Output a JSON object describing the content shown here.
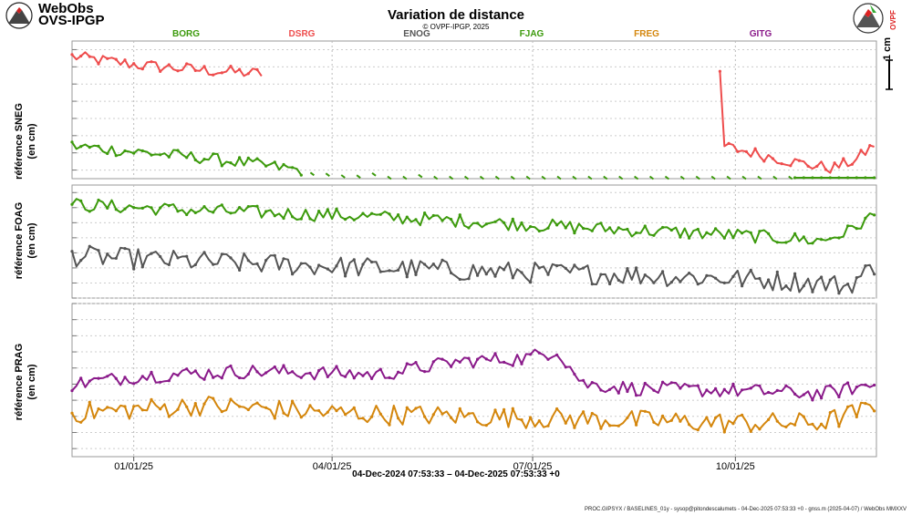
{
  "header": {
    "brand_line1": "WebObs",
    "brand_line2": "OVS-IPGP",
    "title": "Variation de distance",
    "copyright": "© OVPF-IPGP, 2025",
    "logo_text": "OVPF"
  },
  "scale": {
    "label": "1 cm"
  },
  "axis": {
    "date_range": "04-Dec-2024 07:53:33 – 04-Dec-2025 07:53:33 +0",
    "xticks": [
      "01/01/25",
      "04/01/25",
      "07/01/25",
      "10/01/25"
    ]
  },
  "footer": {
    "text": "PROC.GIPSYX / BASELINES_01y - sysop@pitondescalumets - 04-Dec-2025 07:53:33 +0 - gnss.m (2025-04-07) / WebObs MMXXV"
  },
  "colors": {
    "BORG": "#3c9a0c",
    "DSRG": "#ee4c4c",
    "ENOG": "#555555",
    "FJAG": "#3c9a0c",
    "FREG": "#d4860c",
    "GITG": "#8a1a8a"
  },
  "chart_data": {
    "type": "line",
    "title": "Variation de distance",
    "x_unit": "days since 04-Dec-2024",
    "x_range": [
      0,
      365
    ],
    "xticks": [
      {
        "label": "01/01/25",
        "day": 28
      },
      {
        "label": "04/01/25",
        "day": 118
      },
      {
        "label": "07/01/25",
        "day": 209
      },
      {
        "label": "10/01/25",
        "day": 301
      }
    ],
    "legend": [
      "BORG",
      "DSRG",
      "ENOG",
      "FJAG",
      "FREG",
      "GITG"
    ],
    "panels": [
      {
        "ylabel": "référence SNEG",
        "ylabel2": "(en cm)",
        "ylim": [
          -4.5,
          3.5
        ],
        "series": [
          {
            "name": "DSRG",
            "color": "#ee4c4c",
            "anchors": [
              [
                0,
                2.6
              ],
              [
                30,
                2.1
              ],
              [
                60,
                1.8
              ],
              [
                86,
                1.6
              ]
            ],
            "anchors2": [
              [
                295,
                -2.6
              ],
              [
                330,
                -3.6
              ],
              [
                345,
                -3.9
              ],
              [
                356,
                -3.4
              ],
              [
                365,
                -2.4
              ]
            ],
            "noise": 0.35,
            "gaps": [
              [
                87,
                294
              ]
            ]
          },
          {
            "name": "BORG",
            "color": "#3c9a0c",
            "anchors": [
              [
                0,
                -2.6
              ],
              [
                60,
                -3.3
              ],
              [
                110,
                -4.1
              ],
              [
                140,
                -4.4
              ],
              [
                180,
                -4.6
              ],
              [
                220,
                -4.8
              ],
              [
                260,
                -5.4
              ],
              [
                300,
                -6.0
              ],
              [
                330,
                -6.6
              ],
              [
                340,
                -7.0
              ],
              [
                350,
                -6.3
              ],
              [
                358,
                -5.2
              ],
              [
                365,
                -4.2
              ]
            ],
            "noise": 0.35,
            "gaps": [
              [
                105,
                328
              ]
            ],
            "dashed_gap": true
          }
        ]
      },
      {
        "ylabel": "référence FOAG",
        "ylabel2": "(en cm)",
        "ylim": [
          -6.0,
          1.5
        ],
        "series": [
          {
            "name": "FJAG",
            "color": "#3c9a0c",
            "anchors": [
              [
                0,
                0.2
              ],
              [
                60,
                -0.2
              ],
              [
                120,
                -0.5
              ],
              [
                180,
                -0.9
              ],
              [
                240,
                -1.4
              ],
              [
                300,
                -1.8
              ],
              [
                340,
                -2.2
              ],
              [
                352,
                -1.6
              ],
              [
                365,
                -0.4
              ]
            ],
            "noise": 0.45
          },
          {
            "name": "ENOG",
            "color": "#555555",
            "anchors": [
              [
                0,
                -3.2
              ],
              [
                60,
                -3.6
              ],
              [
                120,
                -3.9
              ],
              [
                180,
                -4.2
              ],
              [
                240,
                -4.4
              ],
              [
                300,
                -4.7
              ],
              [
                340,
                -5.0
              ],
              [
                352,
                -5.2
              ],
              [
                365,
                -3.8
              ]
            ],
            "noise": 0.7
          }
        ]
      },
      {
        "ylabel": "référence PRAG",
        "ylabel2": "(en cm)",
        "ylim": [
          -6.5,
          3.0
        ],
        "series": [
          {
            "name": "GITG",
            "color": "#8a1a8a",
            "anchors": [
              [
                0,
                -2.0
              ],
              [
                30,
                -1.5
              ],
              [
                80,
                -1.2
              ],
              [
                140,
                -1.4
              ],
              [
                175,
                -0.6
              ],
              [
                205,
                -0.4
              ],
              [
                220,
                0.1
              ],
              [
                232,
                -2.0
              ],
              [
                260,
                -2.3
              ],
              [
                300,
                -2.4
              ],
              [
                340,
                -2.6
              ],
              [
                365,
                -2.0
              ]
            ],
            "noise": 0.45
          },
          {
            "name": "FREG",
            "color": "#d4860c",
            "anchors": [
              [
                0,
                -3.8
              ],
              [
                60,
                -3.3
              ],
              [
                120,
                -3.8
              ],
              [
                180,
                -4.0
              ],
              [
                240,
                -4.2
              ],
              [
                300,
                -4.4
              ],
              [
                340,
                -4.4
              ],
              [
                365,
                -3.4
              ]
            ],
            "noise": 0.65
          }
        ]
      }
    ]
  }
}
